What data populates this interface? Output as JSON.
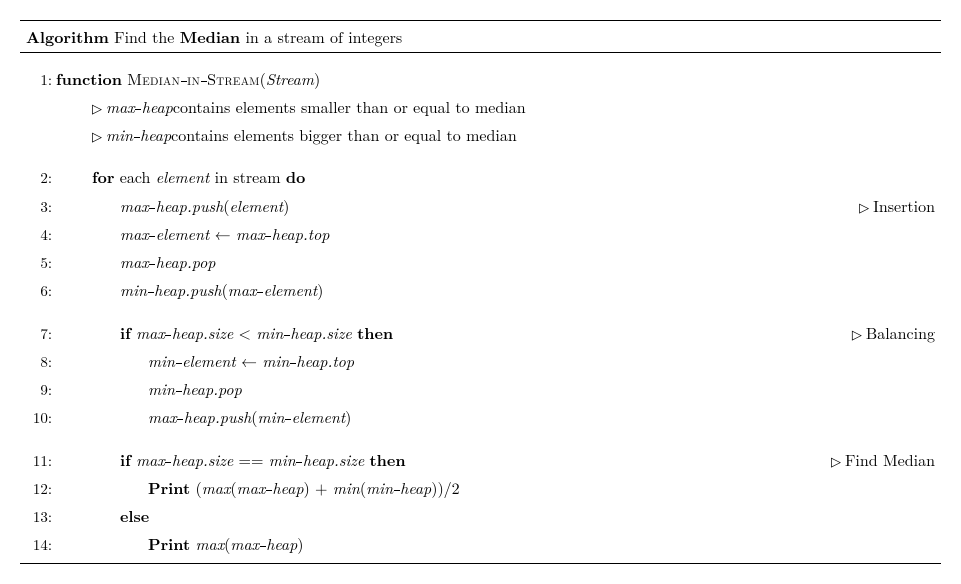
{
  "colors": {
    "text": "#000000",
    "background": "#ffffff",
    "rule": "#000000"
  },
  "typography": {
    "body_fontsize_pt": 12,
    "line_height": 1.75,
    "font_family": "Computer Modern / Latin Modern (serif)"
  },
  "header": {
    "label": "Algorithm",
    "title_prefix": "Find the",
    "title_bold": "Median",
    "title_suffix": "in a stream of integers"
  },
  "lines": {
    "l1": {
      "num": "1:",
      "kw_function": "function",
      "fn_name_a": "Median",
      "fn_name_b": "in",
      "fn_name_c": "Stream",
      "arg": "Stream"
    },
    "c1": {
      "var_a": "max",
      "var_b": "heap",
      "text": " contains elements smaller than or equal to median"
    },
    "c2": {
      "var_a": "min",
      "var_b": "heap",
      "text": " contains elements bigger than or equal to median"
    },
    "l2": {
      "num": "2:",
      "kw_for": "for",
      "each": " each ",
      "element": "element",
      "in_stream": " in stream ",
      "kw_do": "do"
    },
    "l3": {
      "num": "3:",
      "a": "max",
      "b": "heap.push",
      "c": "element",
      "comment": "Insertion"
    },
    "l4": {
      "num": "4:",
      "a": "max",
      "b": "element",
      "arrow": " ← ",
      "c": "max",
      "d": "heap.top"
    },
    "l5": {
      "num": "5:",
      "a": "max",
      "b": "heap.pop"
    },
    "l6": {
      "num": "6:",
      "a": "min",
      "b": "heap.push",
      "c": "max",
      "d": "element"
    },
    "l7": {
      "num": "7:",
      "kw_if": "if",
      "a": "max",
      "b": "heap.size",
      "op": " < ",
      "c": "min",
      "d": "heap.size",
      "kw_then": "then",
      "comment": "Balancing"
    },
    "l8": {
      "num": "8:",
      "a": "min",
      "b": "element",
      "arrow": " ← ",
      "c": "min",
      "d": "heap.top"
    },
    "l9": {
      "num": "9:",
      "a": "min",
      "b": "heap.pop"
    },
    "l10": {
      "num": "10:",
      "a": "max",
      "b": "heap.push",
      "c": "min",
      "d": "element"
    },
    "l11": {
      "num": "11:",
      "kw_if": "if",
      "a": "max",
      "b": "heap.size",
      "op": " == ",
      "c": "min",
      "d": "heap.size",
      "kw_then": "then",
      "comment": "Find Median"
    },
    "l12": {
      "num": "12:",
      "kw_print": "Print",
      "lp": " (",
      "fn1": "max",
      "a1": "max",
      "b1": "heap",
      "plus": ") + ",
      "fn2": "min",
      "a2": "min",
      "b2": "heap",
      "rp": "))/2"
    },
    "l13": {
      "num": "13:",
      "kw_else": "else"
    },
    "l14": {
      "num": "14:",
      "kw_print": "Print",
      "sp": " ",
      "fn": "max",
      "a": "max",
      "b": "heap",
      "rp": ")"
    }
  }
}
